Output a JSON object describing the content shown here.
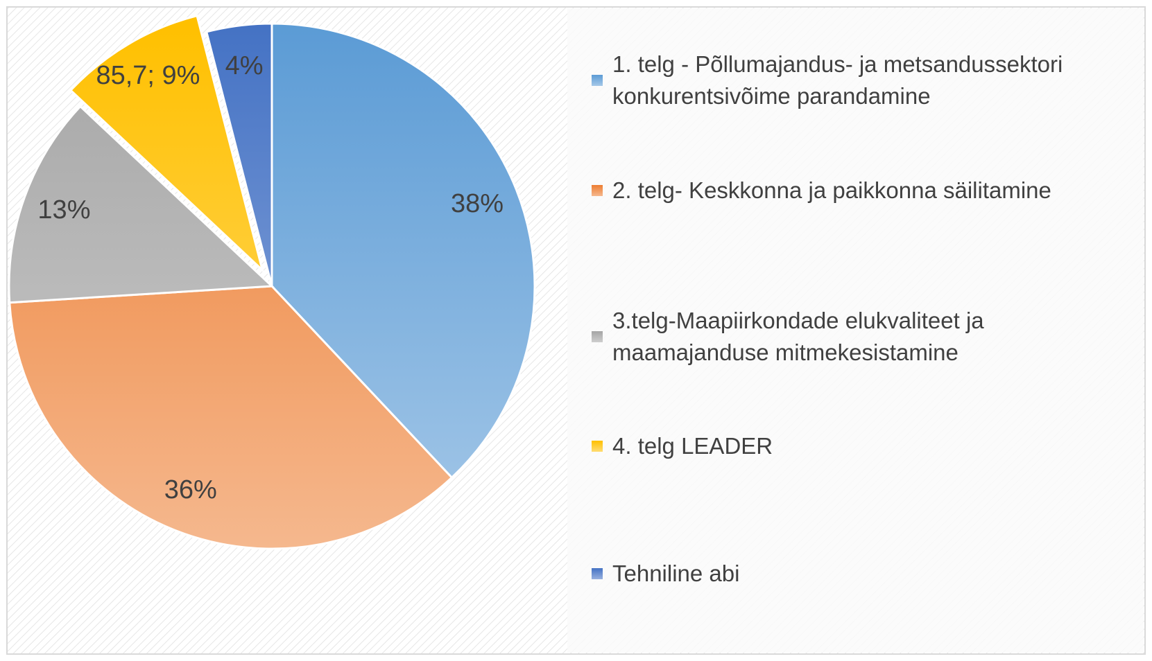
{
  "chart_data": {
    "type": "pie",
    "categories": [
      "1. telg - Põllumajandus- ja metsandussektori konkurentsivõime parandamine",
      "2. telg- Keskkonna ja paikkonna säilitamine",
      "3.telg-Maapiirkondade elukvaliteet ja maamajanduse mitmekesistamine",
      "4. telg LEADER",
      "Tehniline abi"
    ],
    "values": [
      38,
      36,
      13,
      9,
      4
    ],
    "value_labels": [
      "38%",
      "36%",
      "13%",
      "85,7; 9%",
      "4%"
    ],
    "colors": [
      "#5b9bd5",
      "#ed7d31",
      "#a5a5a5",
      "#ffc000",
      "#4472c4"
    ],
    "exploded": [
      false,
      false,
      false,
      true,
      false
    ],
    "legend": "right"
  }
}
